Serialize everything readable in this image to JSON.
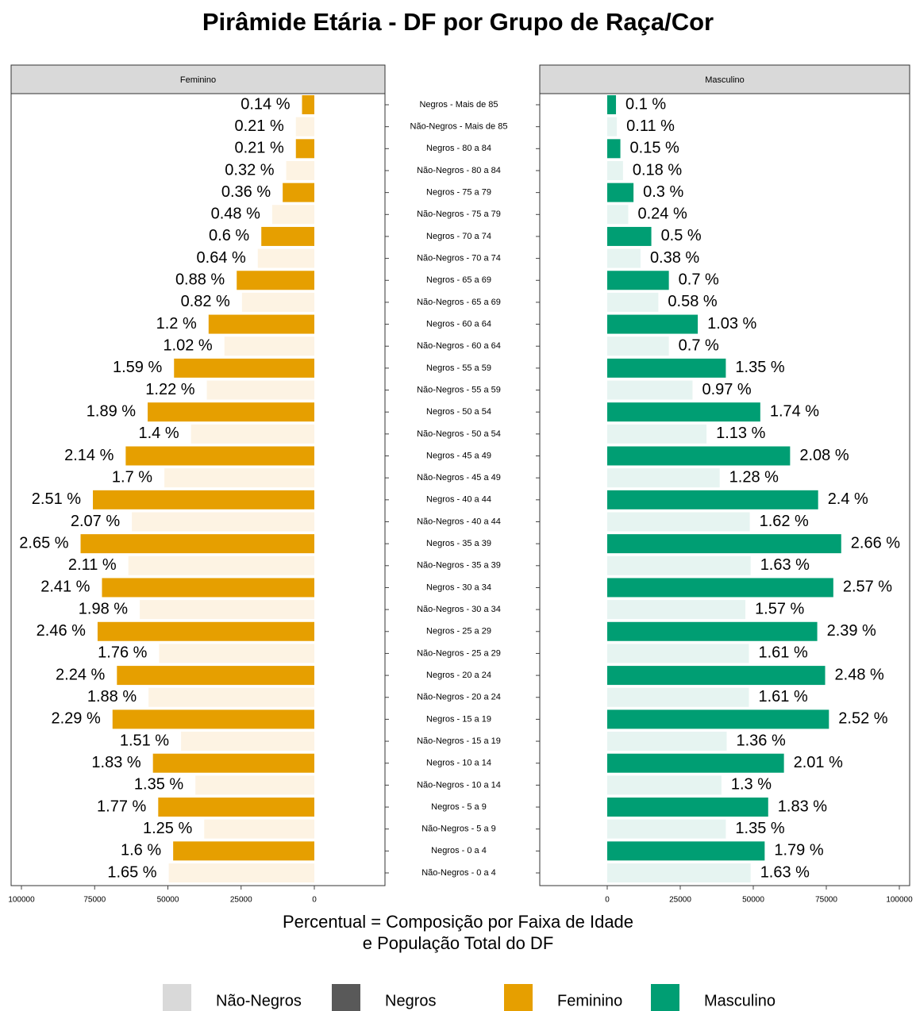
{
  "chart_data": {
    "type": "pyramid",
    "title": "Pirâmide Etária - DF por Grupo de Raça/Cor",
    "xlabel": [
      "Percentual = Composição por Faixa de Idade",
      "e População Total do DF"
    ],
    "categories": [
      "Negros - Mais de 85",
      "Não-Negros - Mais de 85",
      "Negros - 80 a 84",
      "Não-Negros - 80 a 84",
      "Negros - 75 a 79",
      "Não-Negros - 75 a 79",
      "Negros - 70 a 74",
      "Não-Negros - 70 a 74",
      "Negros - 65 a 69",
      "Não-Negros - 65 a 69",
      "Negros - 60 a 64",
      "Não-Negros - 60 a 64",
      "Negros - 55 a 59",
      "Não-Negros - 55 a 59",
      "Negros - 50 a 54",
      "Não-Negros - 50 a 54",
      "Negros - 45 a 49",
      "Não-Negros - 45 a 49",
      "Negros - 40 a 44",
      "Não-Negros - 40 a 44",
      "Negros - 35 a 39",
      "Não-Negros - 35 a 39",
      "Negros - 30 a 34",
      "Não-Negros - 30 a 34",
      "Negros - 25 a 29",
      "Não-Negros - 25 a 29",
      "Negros - 20 a 24",
      "Não-Negros - 20 a 24",
      "Negros - 15 a 19",
      "Não-Negros - 15 a 19",
      "Negros - 10 a 14",
      "Não-Negros - 10 a 14",
      "Negros - 5 a 9",
      "Não-Negros - 5 a 9",
      "Negros - 0 a 4",
      "Não-Negros - 0 a 4"
    ],
    "panels": [
      {
        "name": "Feminino",
        "reversed": true,
        "colors": [
          "#E69F00",
          "#FDF3E3"
        ],
        "xlim": [
          0,
          100000
        ],
        "xticks": [
          100000,
          75000,
          50000,
          25000,
          0
        ],
        "values": [
          4200,
          6300,
          6300,
          9600,
          10800,
          14400,
          18100,
          19300,
          26500,
          24700,
          36100,
          30700,
          47900,
          36700,
          56900,
          42100,
          64400,
          51200,
          75600,
          62300,
          79800,
          63500,
          72500,
          59600,
          74000,
          53000,
          67400,
          56600,
          68900,
          45500,
          55100,
          40600,
          53300,
          37600,
          48200,
          49700
        ],
        "value_labels": [
          "0.14 %",
          "0.21 %",
          "0.21 %",
          "0.32 %",
          "0.36 %",
          "0.48 %",
          "0.6 %",
          "0.64 %",
          "0.88 %",
          "0.82 %",
          "1.2 %",
          "1.02 %",
          "1.59 %",
          "1.22 %",
          "1.89 %",
          "1.4 %",
          "2.14 %",
          "1.7 %",
          "2.51 %",
          "2.07 %",
          "2.65 %",
          "2.11 %",
          "2.41 %",
          "1.98 %",
          "2.46 %",
          "1.76 %",
          "2.24 %",
          "1.88 %",
          "2.29 %",
          "1.51 %",
          "1.83 %",
          "1.35 %",
          "1.77 %",
          "1.25 %",
          "1.6 %",
          "1.65 %"
        ]
      },
      {
        "name": "Masculino",
        "reversed": false,
        "colors": [
          "#009E73",
          "#E6F4F1"
        ],
        "xlim": [
          0,
          100000
        ],
        "xticks": [
          0,
          25000,
          50000,
          75000,
          100000
        ],
        "values": [
          3000,
          3300,
          4500,
          5400,
          9000,
          7200,
          15100,
          11400,
          21100,
          17500,
          31000,
          21100,
          40600,
          29200,
          52400,
          34000,
          62600,
          38500,
          72200,
          48800,
          80100,
          49100,
          77400,
          47300,
          71900,
          48500,
          74600,
          48500,
          75900,
          40900,
          60500,
          39100,
          55100,
          40600,
          53900,
          49100
        ],
        "value_labels": [
          "0.1 %",
          "0.11 %",
          "0.15 %",
          "0.18 %",
          "0.3 %",
          "0.24 %",
          "0.5 %",
          "0.38 %",
          "0.7 %",
          "0.58 %",
          "1.03 %",
          "0.7 %",
          "1.35 %",
          "0.97 %",
          "1.74 %",
          "1.13 %",
          "2.08 %",
          "1.28 %",
          "2.4 %",
          "1.62 %",
          "2.66 %",
          "1.63 %",
          "2.57 %",
          "1.57 %",
          "2.39 %",
          "1.61 %",
          "2.48 %",
          "1.61 %",
          "2.52 %",
          "1.36 %",
          "2.01 %",
          "1.3 %",
          "1.83 %",
          "1.35 %",
          "1.79 %",
          "1.63 %"
        ]
      }
    ],
    "legend": [
      {
        "name": "Não-Negros",
        "color": "#D9D9D9"
      },
      {
        "name": "Negros",
        "color": "#595959"
      },
      {
        "name": "Feminino",
        "color": "#E69F00"
      },
      {
        "name": "Masculino",
        "color": "#009E73"
      }
    ]
  }
}
